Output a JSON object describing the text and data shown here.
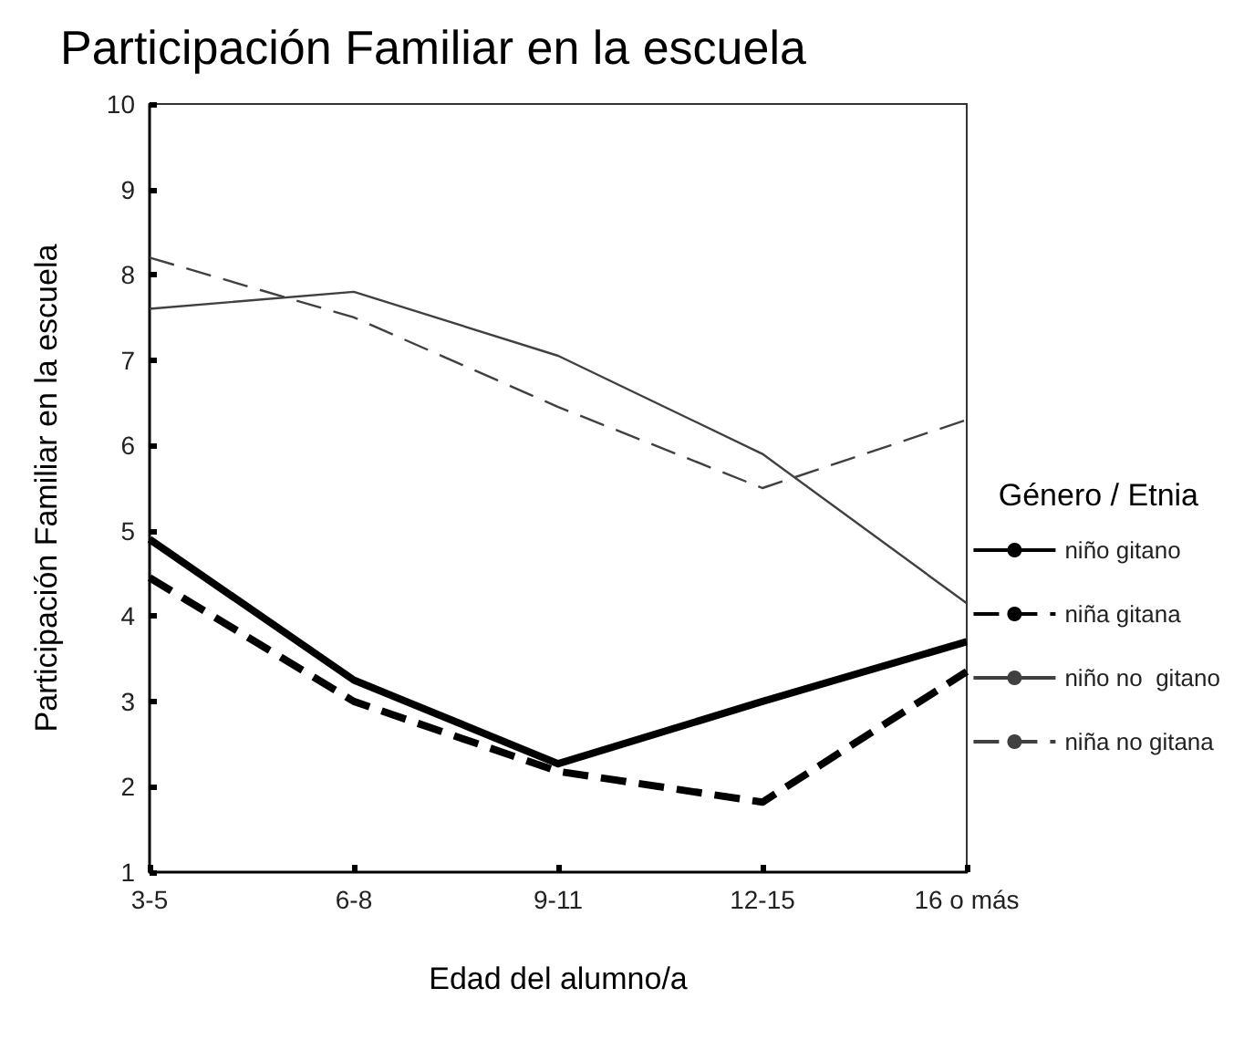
{
  "chart_data": {
    "type": "line",
    "title": "Participación Familiar en la escuela",
    "xlabel": "Edad del alumno/a",
    "ylabel": "Participación Familiar en la escuela",
    "legend_title": "Género / Etnia",
    "categories": [
      "3-5",
      "6-8",
      "9-11",
      "12-15",
      "16 o más"
    ],
    "series": [
      {
        "name": "niño gitano",
        "color": "#000000",
        "line_style": "solid",
        "values": [
          4.9,
          3.25,
          2.27,
          3.0,
          3.7
        ]
      },
      {
        "name": "niña gitana",
        "color": "#000000",
        "line_style": "dashed",
        "values": [
          4.45,
          3.0,
          2.18,
          1.82,
          3.35
        ]
      },
      {
        "name": "niño no  gitano",
        "color": "#404040",
        "line_style": "solid",
        "values": [
          7.6,
          7.8,
          7.05,
          5.9,
          4.15
        ]
      },
      {
        "name": "niña no gitana",
        "color": "#404040",
        "line_style": "dashed",
        "values": [
          8.2,
          7.5,
          6.45,
          5.5,
          6.3
        ]
      }
    ],
    "ylim": [
      1,
      10
    ],
    "yticks": [
      1,
      2,
      3,
      4,
      5,
      6,
      7,
      8,
      9,
      10
    ],
    "grid": false,
    "legend": "right",
    "marker": "none"
  }
}
